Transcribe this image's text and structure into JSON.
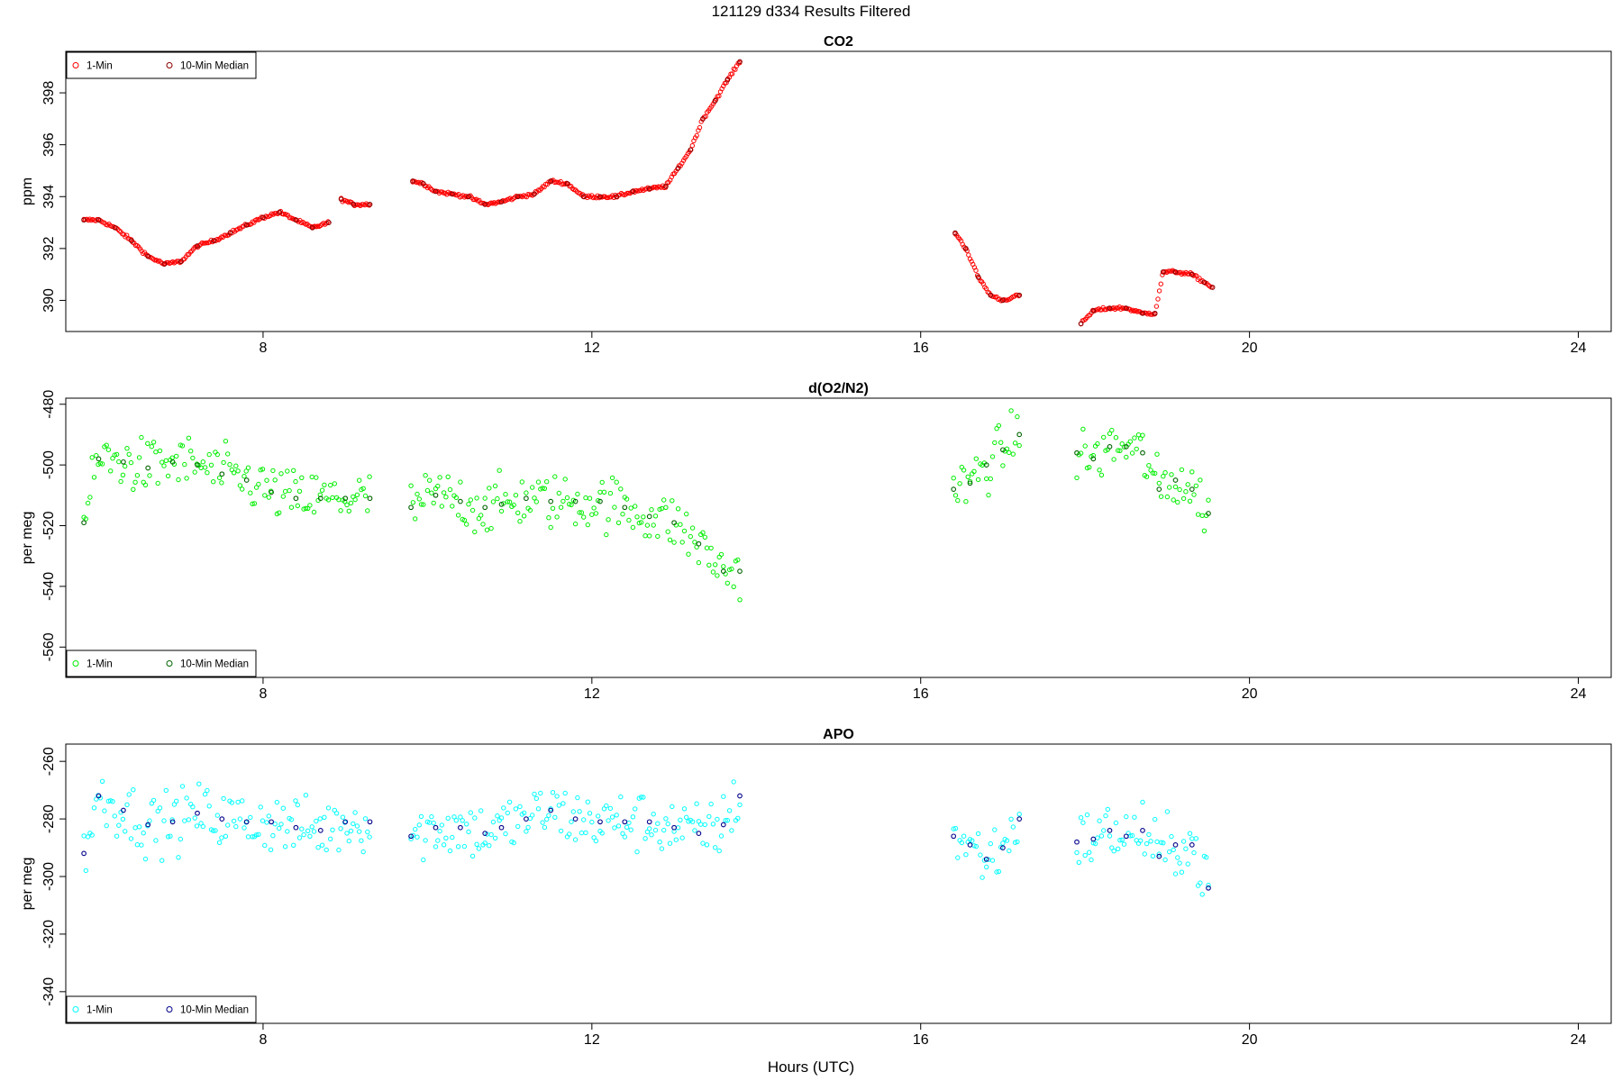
{
  "page": {
    "main_title": "121129   d334   Results Filtered",
    "xlabel": "Hours (UTC)"
  },
  "chart_data": [
    {
      "type": "scatter",
      "title": "CO2",
      "ylabel": "ppm",
      "xlim": [
        5.6,
        24.4
      ],
      "ylim": [
        388.8,
        399.6
      ],
      "xticks": [
        8,
        12,
        16,
        20,
        24
      ],
      "yticks": [
        390,
        392,
        394,
        396,
        398
      ],
      "legend": {
        "position": "top-left",
        "entries": [
          "1-Min",
          "10-Min Median"
        ]
      },
      "colors": {
        "one_min": "#ff0000",
        "median": "#8b0000"
      },
      "segments": [
        {
          "x": [
            5.82,
            6.0,
            6.2,
            6.4,
            6.6,
            6.8,
            7.0,
            7.2,
            7.4,
            7.6,
            7.8,
            8.0,
            8.2,
            8.4,
            8.6,
            8.8
          ],
          "y": [
            393.1,
            393.1,
            392.8,
            392.3,
            391.7,
            391.4,
            391.5,
            392.1,
            392.3,
            392.6,
            392.9,
            393.2,
            393.4,
            393.1,
            392.8,
            393.0
          ]
        },
        {
          "x": [
            8.95,
            9.1,
            9.3
          ],
          "y": [
            393.9,
            393.7,
            393.7
          ]
        },
        {
          "x": [
            9.82,
            9.95,
            10.1,
            10.3,
            10.5,
            10.7,
            10.9,
            11.1,
            11.3,
            11.5,
            11.7,
            11.9,
            12.1,
            12.3,
            12.5,
            12.7,
            12.9,
            13.05,
            13.2,
            13.35,
            13.5,
            13.65,
            13.8
          ],
          "y": [
            394.6,
            394.5,
            394.2,
            394.1,
            394.0,
            393.7,
            393.8,
            394.0,
            394.1,
            394.6,
            394.5,
            394.0,
            394.0,
            394.0,
            394.2,
            394.3,
            394.4,
            395.1,
            395.8,
            397.0,
            397.7,
            398.5,
            399.2
          ]
        },
        {
          "x": [
            16.42,
            16.55,
            16.7,
            16.85,
            17.0,
            17.2
          ],
          "y": [
            392.6,
            392.0,
            390.9,
            390.2,
            390.0,
            390.2
          ]
        },
        {
          "x": [
            17.95,
            18.1,
            18.3,
            18.5,
            18.7,
            18.85,
            18.95,
            19.1,
            19.3,
            19.45,
            19.55
          ],
          "y": [
            389.1,
            389.6,
            389.7,
            389.7,
            389.5,
            389.5,
            391.1,
            391.1,
            391.0,
            390.7,
            390.5
          ]
        }
      ]
    },
    {
      "type": "scatter",
      "title": "d(O2/N2)",
      "ylabel": "per meg",
      "xlim": [
        5.6,
        24.4
      ],
      "ylim": [
        -570,
        -478
      ],
      "xticks": [
        8,
        12,
        16,
        20,
        24
      ],
      "yticks": [
        -480,
        -500,
        -520,
        -540,
        -560
      ],
      "legend": {
        "position": "bottom-left",
        "entries": [
          "1-Min",
          "10-Min Median"
        ]
      },
      "colors": {
        "one_min": "#00ee00",
        "median": "#006400"
      },
      "segments": [
        {
          "x": [
            5.82,
            6.0,
            6.3,
            6.6,
            6.9,
            7.2,
            7.5,
            7.8,
            8.1,
            8.4,
            8.7,
            9.0,
            9.3
          ],
          "y": [
            -519,
            -498,
            -499,
            -501,
            -499,
            -500,
            -503,
            -505,
            -509,
            -511,
            -511,
            -511,
            -511
          ]
        },
        {
          "x": [
            9.8,
            10.1,
            10.4,
            10.7,
            10.9,
            11.2,
            11.5,
            11.8,
            12.1,
            12.4,
            12.7,
            13.0,
            13.3,
            13.6,
            13.8
          ],
          "y": [
            -514,
            -510,
            -512,
            -514,
            -513,
            -511,
            -512,
            -512,
            -512,
            -514,
            -517,
            -519,
            -526,
            -535,
            -535
          ]
        },
        {
          "x": [
            16.4,
            16.6,
            16.8,
            17.0,
            17.2
          ],
          "y": [
            -508,
            -506,
            -500,
            -495,
            -490
          ]
        },
        {
          "x": [
            17.9,
            18.1,
            18.3,
            18.5,
            18.7,
            18.9,
            19.1,
            19.3,
            19.5
          ],
          "y": [
            -496,
            -498,
            -494,
            -494,
            -496,
            -508,
            -505,
            -508,
            -516
          ]
        }
      ]
    },
    {
      "type": "scatter",
      "title": "APO",
      "ylabel": "per meg",
      "xlim": [
        5.6,
        24.4
      ],
      "ylim": [
        -351,
        -254
      ],
      "xticks": [
        8,
        12,
        16,
        20,
        24
      ],
      "yticks": [
        -260,
        -280,
        -300,
        -320,
        -340
      ],
      "legend": {
        "position": "bottom-left",
        "entries": [
          "1-Min",
          "10-Min Median"
        ]
      },
      "colors": {
        "one_min": "#00ffff",
        "median": "#00008b"
      },
      "segments": [
        {
          "x": [
            5.82,
            6.0,
            6.3,
            6.6,
            6.9,
            7.2,
            7.5,
            7.8,
            8.1,
            8.4,
            8.7,
            9.0,
            9.3
          ],
          "y": [
            -292,
            -272,
            -277,
            -282,
            -281,
            -278,
            -280,
            -281,
            -281,
            -283,
            -284,
            -281,
            -281
          ]
        },
        {
          "x": [
            9.8,
            10.1,
            10.4,
            10.7,
            10.9,
            11.2,
            11.5,
            11.8,
            12.1,
            12.4,
            12.7,
            13.0,
            13.3,
            13.6,
            13.8
          ],
          "y": [
            -286,
            -283,
            -283,
            -285,
            -283,
            -280,
            -277,
            -280,
            -281,
            -281,
            -281,
            -283,
            -285,
            -282,
            -272
          ]
        },
        {
          "x": [
            16.4,
            16.6,
            16.8,
            17.0,
            17.2
          ],
          "y": [
            -286,
            -289,
            -294,
            -290,
            -280
          ]
        },
        {
          "x": [
            17.9,
            18.1,
            18.3,
            18.5,
            18.7,
            18.9,
            19.1,
            19.3,
            19.5
          ],
          "y": [
            -288,
            -287,
            -284,
            -286,
            -284,
            -293,
            -289,
            -289,
            -304
          ]
        }
      ]
    }
  ]
}
